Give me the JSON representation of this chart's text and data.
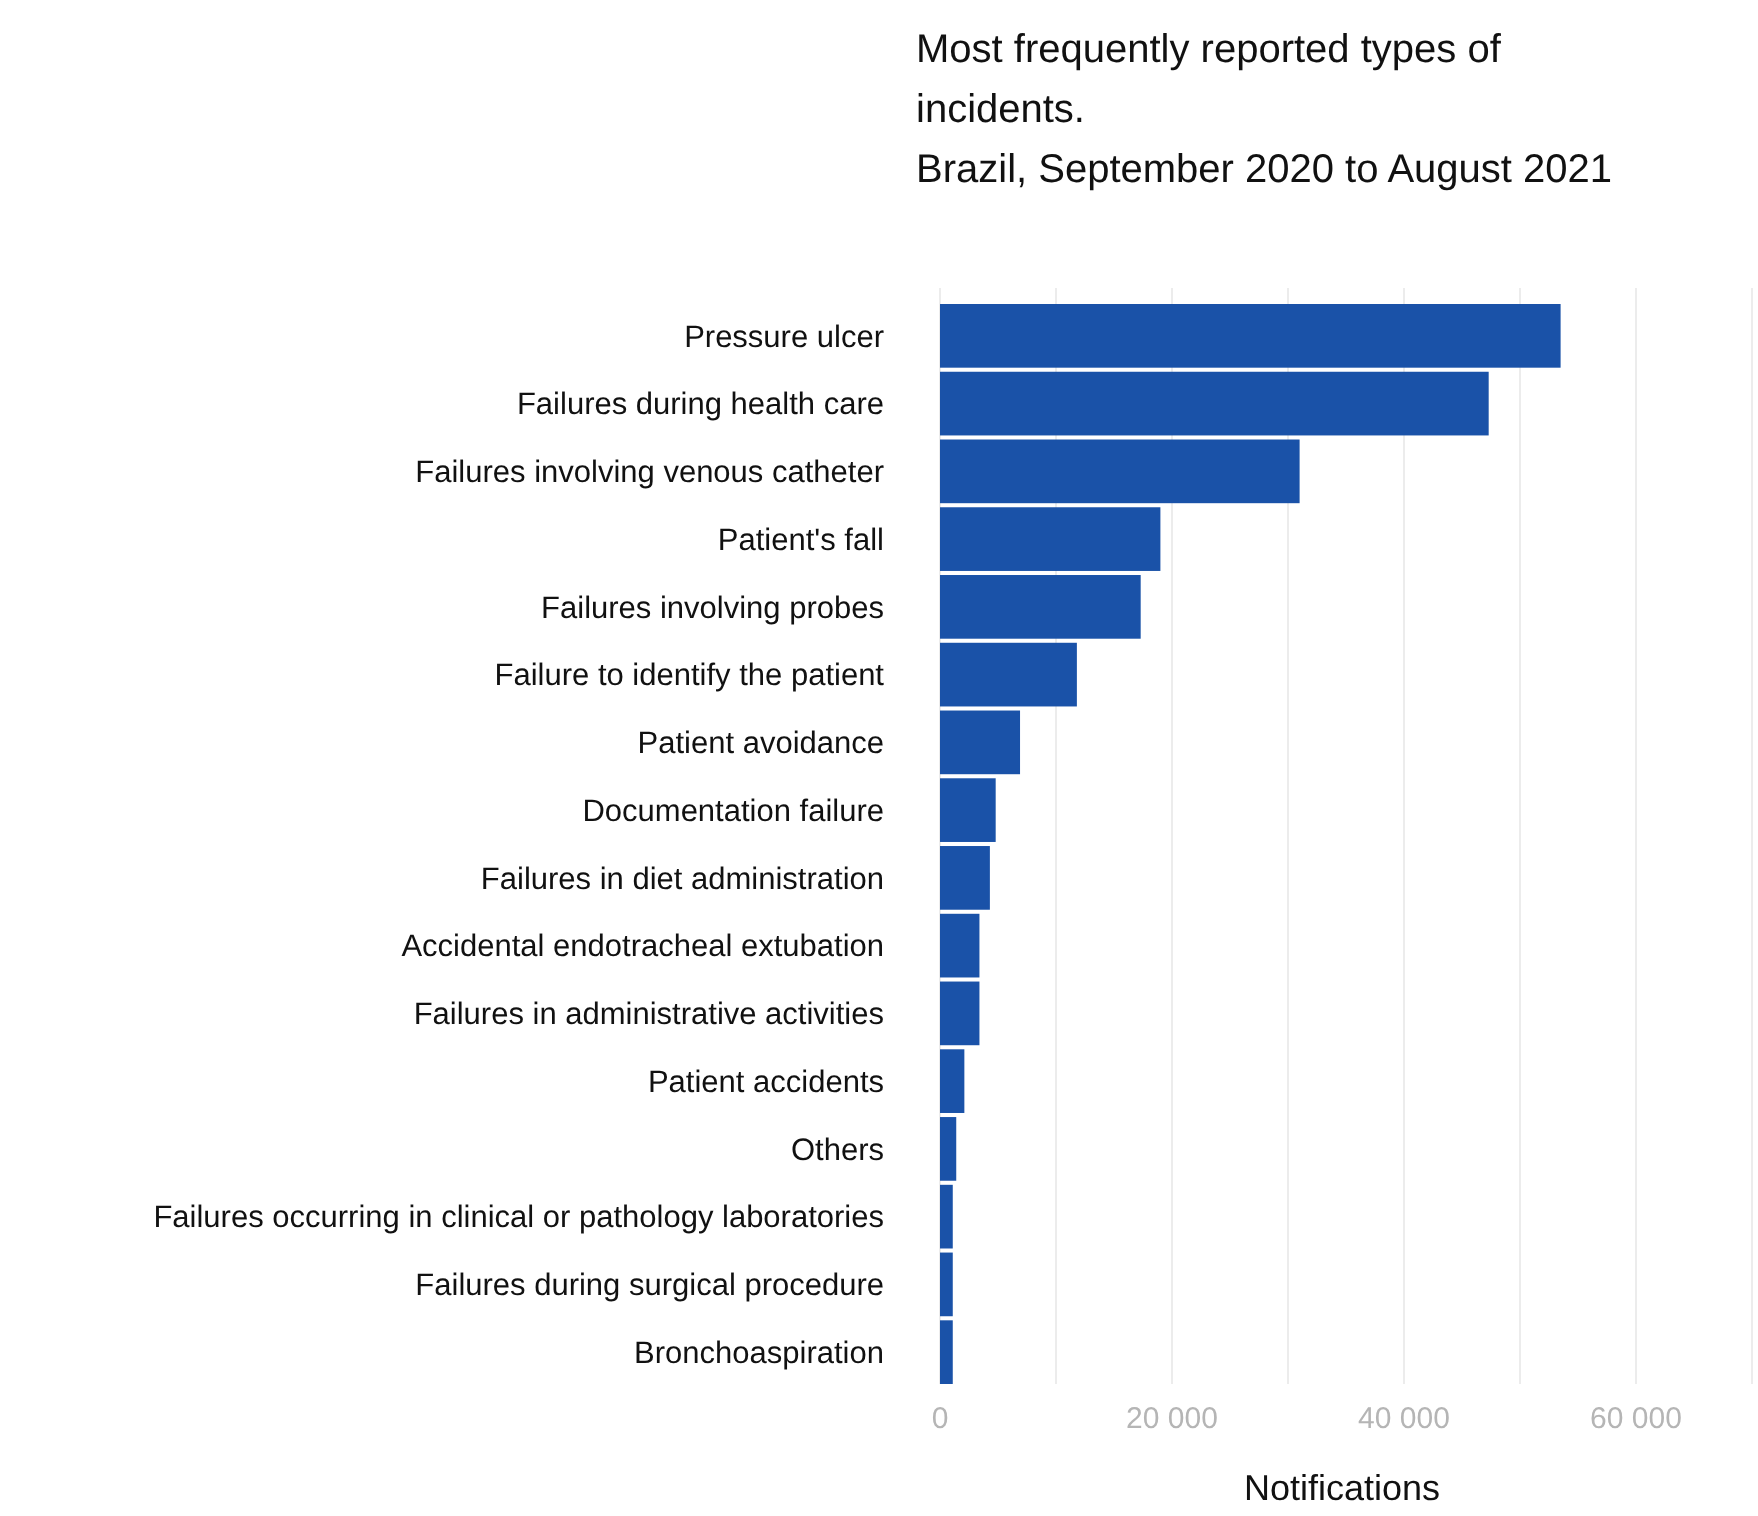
{
  "chart_data": {
    "type": "bar",
    "orientation": "horizontal",
    "title": "Most frequently reported types of incidents.",
    "subtitle": "Brazil, September 2020 to August 2021",
    "xlabel": "Notifications",
    "categories": [
      "Pressure ulcer",
      "Failures during health care",
      "Failures involving venous catheter",
      "Patient's fall",
      "Failures involving probes",
      "Failure to identify the patient",
      "Patient avoidance",
      "Documentation failure",
      "Failures in diet administration",
      "Accidental endotracheal extubation",
      "Failures in administrative activities",
      "Patient accidents",
      "Others",
      "Failures occurring in clinical or pathology laboratories",
      "Failures during surgical procedure",
      "Bronchoaspiration"
    ],
    "values": [
      53500,
      47300,
      31000,
      19000,
      17300,
      11800,
      6900,
      4800,
      4300,
      3400,
      3400,
      2100,
      1400,
      1100,
      1100,
      1100
    ],
    "color": "#1a52a8",
    "xlim": [
      0,
      70000
    ],
    "xticks": [
      0,
      {
        "value": 10000,
        "label": null
      },
      {
        "value": 20000,
        "label": "20 000"
      },
      {
        "value": 30000,
        "label": null
      },
      {
        "value": 40000,
        "label": "40 000"
      },
      {
        "value": 50000,
        "label": null
      },
      {
        "value": 60000,
        "label": "60 000"
      },
      {
        "value": 70000,
        "label": null
      }
    ],
    "grid": "x"
  }
}
